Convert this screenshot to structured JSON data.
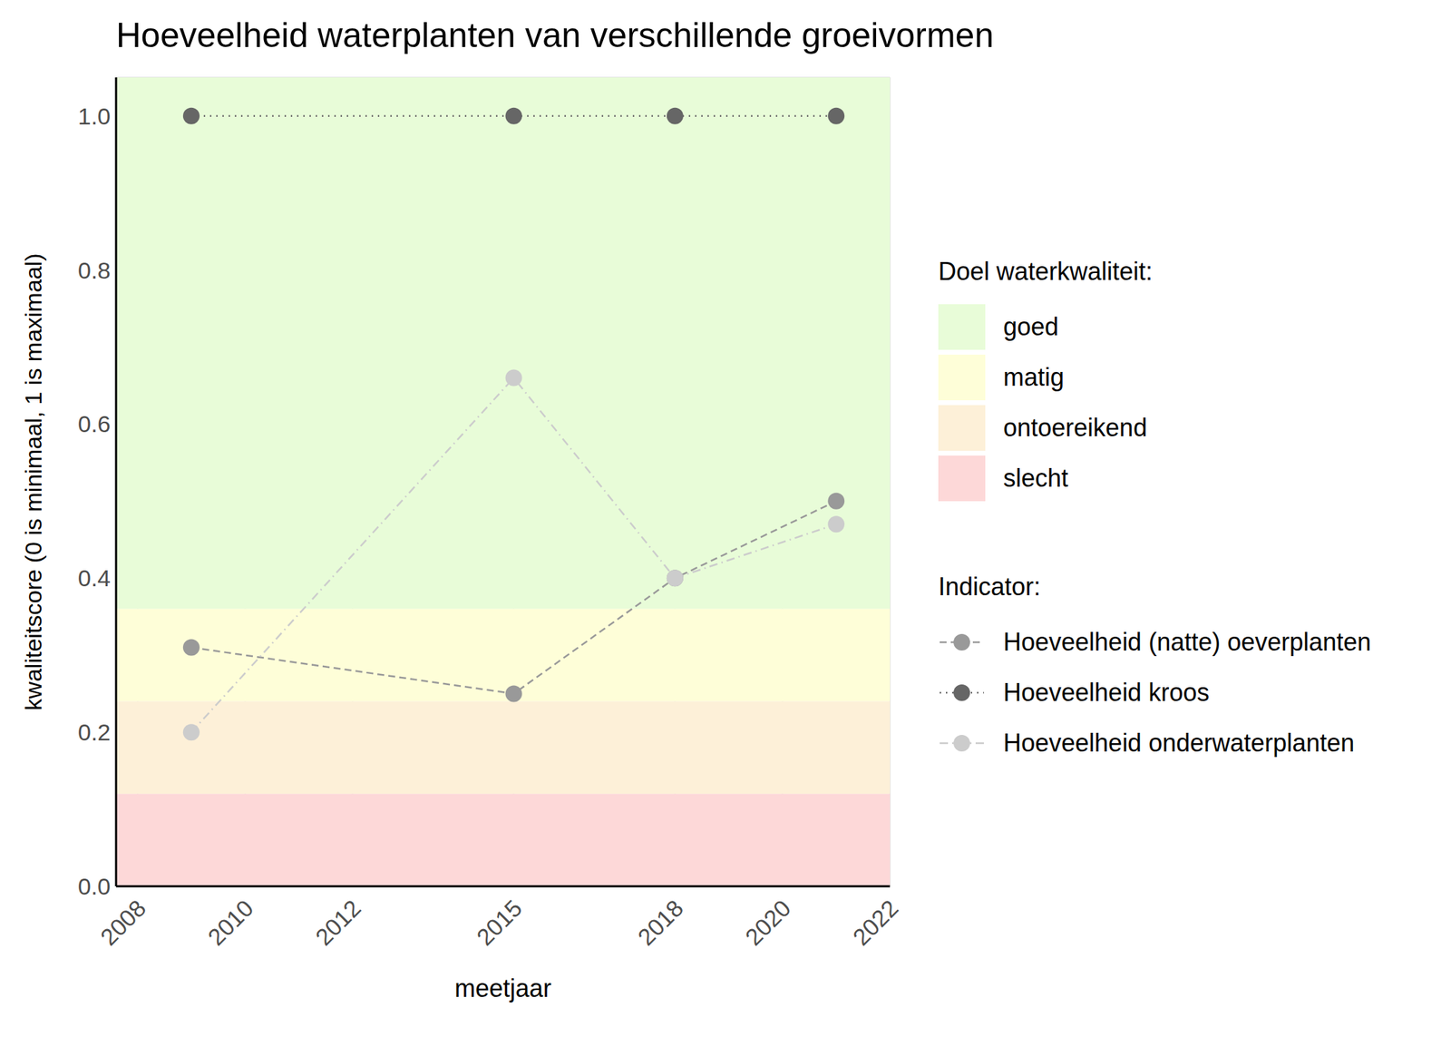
{
  "chart_data": {
    "type": "line",
    "title": "Hoeveelheid waterplanten van verschillende groeivormen",
    "x_label": "meetjaar",
    "y_label": "kwaliteitscore (0 is minimaal, 1 is maximaal)",
    "x": [
      2009,
      2015,
      2018,
      2021
    ],
    "xlim": [
      2007.6,
      2022
    ],
    "xticks": [
      2008,
      2010,
      2012,
      2015,
      2018,
      2020,
      2022
    ],
    "ylim": [
      0,
      1.05
    ],
    "yticks": [
      {
        "value": 0,
        "label": "0.0"
      },
      {
        "value": 0.2,
        "label": "0.2"
      },
      {
        "value": 0.4,
        "label": "0.4"
      },
      {
        "value": 0.6,
        "label": "0.6"
      },
      {
        "value": 0.8,
        "label": "0.8"
      },
      {
        "value": 1,
        "label": "1.0"
      }
    ],
    "grid": true,
    "bands_title": "Doel waterkwaliteit:",
    "bands": [
      {
        "name": "goed",
        "color": "#e8fcd8",
        "from": 0.36,
        "to": 1.05
      },
      {
        "name": "matig",
        "color": "#fefed8",
        "from": 0.24,
        "to": 0.36
      },
      {
        "name": "ontoereikend",
        "color": "#fdf0d8",
        "from": 0.12,
        "to": 0.24
      },
      {
        "name": "slecht",
        "color": "#fdd8d8",
        "from": 0,
        "to": 0.12
      }
    ],
    "legend_title": "Indicator:",
    "series": [
      {
        "name": "Hoeveelheid (natte) oeverplanten",
        "color": "#999999",
        "line_style": "dashed",
        "marker": "circle",
        "values": [
          0.31,
          0.25,
          0.4,
          0.5
        ]
      },
      {
        "name": "Hoeveelheid kroos",
        "color": "#666666",
        "line_style": "dotted",
        "marker": "circle",
        "values": [
          1.0,
          1.0,
          1.0,
          1.0
        ]
      },
      {
        "name": "Hoeveelheid onderwaterplanten",
        "color": "#cccccc",
        "line_style": "dotdash",
        "marker": "circle",
        "values": [
          0.2,
          0.66,
          0.4,
          0.47
        ]
      }
    ]
  }
}
